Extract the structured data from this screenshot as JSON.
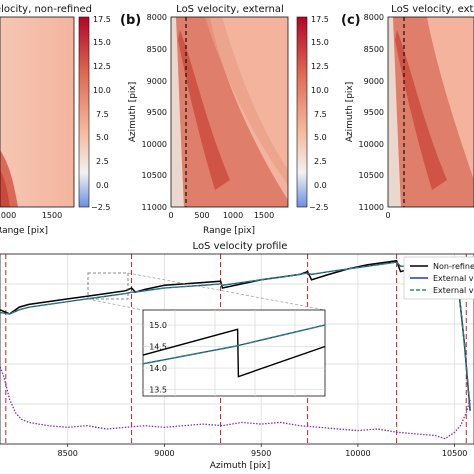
{
  "panel_a": {
    "title": "LoS velocity, non-refined",
    "x_ticks": [
      "1000",
      "1500"
    ],
    "x_label": "Range [pix]",
    "colorbar_ticks": [
      "17.5",
      "15.0",
      "12.5",
      "10.0",
      "7.5",
      "5.0",
      "2.5",
      "0.0",
      "−2.5"
    ]
  },
  "panel_b": {
    "letter": "(b)",
    "title": "LoS velocity, external",
    "x_ticks": [
      "0",
      "500",
      "1000",
      "1500"
    ],
    "x_label": "Range [pix]",
    "y_label": "Azimuth [pix]",
    "y_ticks": [
      "8000",
      "8500",
      "9000",
      "9500",
      "10000",
      "10500",
      "11000"
    ],
    "colorbar_ticks": [
      "17.5",
      "15.0",
      "12.5",
      "10.0",
      "7.5",
      "5.0",
      "2.5",
      "0.0",
      "−2.5"
    ]
  },
  "panel_c": {
    "letter": "(c)",
    "title": "LoS velocity, external",
    "y_label": "Azimuth [pix]",
    "y_ticks": [
      "8000",
      "8500",
      "9000",
      "9500",
      "10000",
      "10500",
      "11000"
    ],
    "x_ticks": [
      "0"
    ]
  },
  "profile": {
    "title": "LoS velocity profile",
    "x_label": "Azimuth [pix]",
    "x_ticks": [
      "8500",
      "9000",
      "9500",
      "10000",
      "10500"
    ],
    "inset_y_ticks": [
      "15.0",
      "14.5",
      "14.0",
      "13.5"
    ],
    "legend": [
      "Non-refined",
      "External velocity",
      "External velocity, refined"
    ]
  },
  "colors": {
    "non_refined": "#000000",
    "external": "#1f3fbf",
    "external_refined": "#2e8b57",
    "dashed_marker": "#cc2222",
    "bottom_profile": "#7b2fbf"
  },
  "chart_data": [
    {
      "type": "heatmap",
      "title": "LoS velocity, non-refined",
      "xlabel": "Range [pix]",
      "x_ticks": [
        1000,
        1500
      ],
      "colorbar": {
        "vmin": -2.5,
        "vmax": 17.5,
        "ticks": [
          17.5,
          15.0,
          12.5,
          10.0,
          7.5,
          5.0,
          2.5,
          0.0,
          -2.5
        ]
      }
    },
    {
      "type": "heatmap",
      "title": "LoS velocity, external",
      "xlabel": "Range [pix]",
      "ylabel": "Azimuth [pix]",
      "xlim": [
        0,
        1900
      ],
      "ylim": [
        8000,
        11000
      ],
      "x_ticks": [
        0,
        500,
        1000,
        1500
      ],
      "y_ticks": [
        8000,
        8500,
        9000,
        9500,
        10000,
        10500,
        11000
      ],
      "profile_line_range": 300,
      "colorbar": {
        "vmin": -2.5,
        "vmax": 17.5,
        "ticks": [
          17.5,
          15.0,
          12.5,
          10.0,
          7.5,
          5.0,
          2.5,
          0.0,
          -2.5
        ]
      }
    },
    {
      "type": "heatmap",
      "title": "LoS velocity, external",
      "ylabel": "Azimuth [pix]",
      "ylim": [
        8000,
        11000
      ],
      "x_ticks": [
        0
      ],
      "y_ticks": [
        8000,
        8500,
        9000,
        9500,
        10000,
        10500,
        11000
      ]
    },
    {
      "type": "line",
      "title": "LoS velocity profile",
      "xlabel": "Azimuth [pix]",
      "xlim": [
        8150,
        10600
      ],
      "x_ticks": [
        8500,
        9000,
        9500,
        10000,
        10500
      ],
      "vertical_dashed_lines": [
        8180,
        8830,
        9290,
        9740,
        10200,
        10560
      ],
      "series": [
        {
          "name": "Non-refined",
          "x": [
            8150,
            8200,
            8250,
            8300,
            8400,
            8500,
            8600,
            8700,
            8800,
            8830,
            8850,
            8900,
            9000,
            9100,
            9200,
            9290,
            9300,
            9400,
            9500,
            9600,
            9700,
            9740,
            9760,
            9850,
            9950,
            10050,
            10150,
            10200,
            10220,
            10300,
            10400,
            10480,
            10520,
            10550,
            10580
          ],
          "y": [
            14.4,
            14.1,
            14.6,
            14.8,
            15.0,
            15.2,
            15.4,
            15.6,
            15.8,
            16.0,
            15.7,
            15.9,
            16.2,
            16.3,
            16.4,
            16.5,
            16.0,
            16.3,
            16.6,
            16.8,
            17.0,
            17.2,
            16.6,
            17.0,
            17.4,
            17.7,
            17.9,
            18.0,
            17.2,
            17.5,
            17.7,
            17.4,
            16.0,
            12.0,
            7.0
          ]
        },
        {
          "name": "External velocity",
          "x": [
            8150,
            8200,
            8250,
            8300,
            8400,
            8500,
            8600,
            8700,
            8800,
            8830,
            8850,
            8900,
            9000,
            9100,
            9200,
            9290,
            9300,
            9400,
            9500,
            9600,
            9700,
            9740,
            9760,
            9850,
            9950,
            10050,
            10150,
            10200,
            10220,
            10300,
            10400,
            10480,
            10520,
            10550,
            10580
          ],
          "y": [
            14.2,
            14.1,
            14.4,
            14.6,
            14.8,
            15.0,
            15.2,
            15.4,
            15.6,
            15.7,
            15.7,
            15.8,
            16.0,
            16.1,
            16.2,
            16.3,
            16.2,
            16.4,
            16.6,
            16.8,
            17.0,
            17.1,
            17.0,
            17.2,
            17.4,
            17.6,
            17.8,
            17.9,
            17.6,
            17.6,
            17.7,
            17.4,
            16.0,
            12.0,
            7.0
          ]
        },
        {
          "name": "External velocity, refined",
          "x": [
            8150,
            8200,
            8250,
            8300,
            8400,
            8500,
            8600,
            8700,
            8800,
            8830,
            8850,
            8900,
            9000,
            9100,
            9200,
            9290,
            9300,
            9400,
            9500,
            9600,
            9700,
            9740,
            9760,
            9850,
            9950,
            10050,
            10150,
            10200,
            10220,
            10300,
            10400,
            10480,
            10520,
            10550,
            10580
          ],
          "y": [
            14.2,
            14.1,
            14.4,
            14.6,
            14.8,
            15.0,
            15.2,
            15.4,
            15.6,
            15.7,
            15.7,
            15.8,
            16.0,
            16.1,
            16.2,
            16.3,
            16.2,
            16.4,
            16.6,
            16.8,
            17.0,
            17.1,
            17.0,
            17.2,
            17.4,
            17.6,
            17.8,
            17.9,
            17.6,
            17.6,
            17.7,
            17.4,
            16.0,
            12.0,
            7.0
          ]
        }
      ],
      "bottom_series_x": [
        8150,
        8170,
        8200,
        8230,
        8260,
        8300,
        8350,
        8400,
        8500,
        8600,
        8700,
        8800,
        8900,
        9000,
        9100,
        9200,
        9300,
        9400,
        9500,
        9600,
        9700,
        9800,
        9900,
        10000,
        10100,
        10200,
        10300,
        10400,
        10450,
        10500,
        10530,
        10560,
        10580
      ],
      "bottom_series_y": [
        8.6,
        8.3,
        7.6,
        7.2,
        7.0,
        6.9,
        6.85,
        6.8,
        6.75,
        6.8,
        6.7,
        6.75,
        6.8,
        6.75,
        6.8,
        6.85,
        6.8,
        6.9,
        6.85,
        6.9,
        6.8,
        6.75,
        6.7,
        6.65,
        6.7,
        6.6,
        6.55,
        6.5,
        6.4,
        6.6,
        6.8,
        7.2,
        7.6
      ]
    },
    {
      "type": "line",
      "title": "",
      "xlim": [
        8700,
        8950
      ],
      "ylim": [
        13.35,
        15.35
      ],
      "y_ticks": [
        15.0,
        14.5,
        14.0,
        13.5
      ],
      "series": [
        {
          "name": "Non-refined",
          "x": [
            8700,
            8830,
            8831,
            8950
          ],
          "y": [
            14.3,
            14.9,
            13.8,
            14.5
          ]
        },
        {
          "name": "External velocity",
          "x": [
            8700,
            8825,
            8950
          ],
          "y": [
            14.1,
            14.5,
            15.0
          ]
        },
        {
          "name": "External velocity, refined",
          "x": [
            8700,
            8825,
            8950
          ],
          "y": [
            14.1,
            14.5,
            15.0
          ]
        }
      ]
    }
  ]
}
